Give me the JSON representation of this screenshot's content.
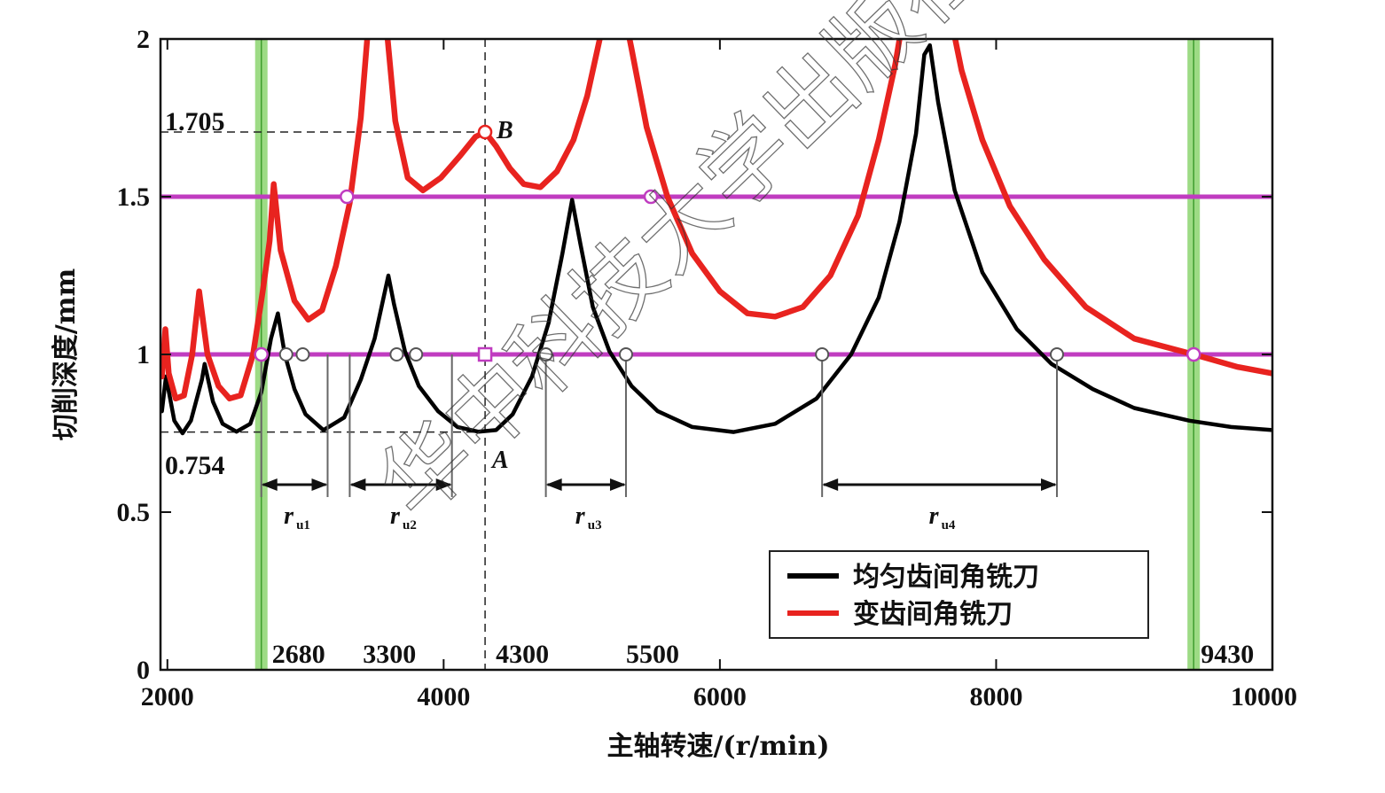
{
  "chart_data": {
    "type": "line",
    "xlabel": "主轴转速/(r/min)",
    "ylabel": "切削深度/mm",
    "xlim": [
      1950,
      10000
    ],
    "ylim": [
      0,
      2
    ],
    "xticks": [
      2000,
      4000,
      6000,
      8000,
      10000
    ],
    "xtick_labels": [
      "2000",
      "4000",
      "6000",
      "8000",
      "10000"
    ],
    "yticks": [
      0,
      0.5,
      1,
      1.5,
      2
    ],
    "ytick_labels": [
      "0",
      "0.5",
      "1",
      "1.5",
      "2"
    ],
    "legend_position": "bottom-right",
    "colors": {
      "uniform": "#000000",
      "variable": "#e8231f",
      "threshold": "#c03cc0",
      "bounds": "#7ccf5c"
    },
    "series": [
      {
        "name": "均匀齿间角铣刀",
        "color": "#000000",
        "points": [
          [
            1960,
            0.82
          ],
          [
            1990,
            0.93
          ],
          [
            2050,
            0.79
          ],
          [
            2110,
            0.75
          ],
          [
            2170,
            0.79
          ],
          [
            2250,
            0.92
          ],
          [
            2270,
            0.97
          ],
          [
            2330,
            0.85
          ],
          [
            2400,
            0.78
          ],
          [
            2500,
            0.755
          ],
          [
            2600,
            0.78
          ],
          [
            2680,
            0.88
          ],
          [
            2750,
            1.05
          ],
          [
            2800,
            1.13
          ],
          [
            2850,
            1.0
          ],
          [
            2920,
            0.89
          ],
          [
            3000,
            0.81
          ],
          [
            3130,
            0.76
          ],
          [
            3280,
            0.8
          ],
          [
            3400,
            0.92
          ],
          [
            3500,
            1.05
          ],
          [
            3560,
            1.17
          ],
          [
            3600,
            1.25
          ],
          [
            3640,
            1.16
          ],
          [
            3720,
            1.01
          ],
          [
            3820,
            0.9
          ],
          [
            3960,
            0.82
          ],
          [
            4100,
            0.77
          ],
          [
            4250,
            0.755
          ],
          [
            4380,
            0.76
          ],
          [
            4500,
            0.81
          ],
          [
            4640,
            0.93
          ],
          [
            4760,
            1.1
          ],
          [
            4860,
            1.32
          ],
          [
            4930,
            1.49
          ],
          [
            4990,
            1.35
          ],
          [
            5080,
            1.15
          ],
          [
            5200,
            1.01
          ],
          [
            5360,
            0.9
          ],
          [
            5550,
            0.82
          ],
          [
            5800,
            0.77
          ],
          [
            6100,
            0.754
          ],
          [
            6400,
            0.78
          ],
          [
            6700,
            0.86
          ],
          [
            6950,
            1.0
          ],
          [
            7150,
            1.18
          ],
          [
            7300,
            1.42
          ],
          [
            7420,
            1.7
          ],
          [
            7480,
            1.95
          ],
          [
            7520,
            1.98
          ],
          [
            7580,
            1.8
          ],
          [
            7700,
            1.52
          ],
          [
            7900,
            1.26
          ],
          [
            8150,
            1.08
          ],
          [
            8400,
            0.97
          ],
          [
            8700,
            0.89
          ],
          [
            9000,
            0.83
          ],
          [
            9400,
            0.79
          ],
          [
            9700,
            0.77
          ],
          [
            10000,
            0.76
          ]
        ]
      },
      {
        "name": "变齿间角铣刀",
        "color": "#e8231f",
        "points": [
          [
            1960,
            0.93
          ],
          [
            1985,
            1.08
          ],
          [
            2010,
            0.94
          ],
          [
            2060,
            0.86
          ],
          [
            2120,
            0.87
          ],
          [
            2180,
            1.0
          ],
          [
            2230,
            1.2
          ],
          [
            2290,
            1.0
          ],
          [
            2370,
            0.9
          ],
          [
            2450,
            0.86
          ],
          [
            2530,
            0.87
          ],
          [
            2620,
            1.0
          ],
          [
            2690,
            1.2
          ],
          [
            2740,
            1.36
          ],
          [
            2770,
            1.54
          ],
          [
            2820,
            1.33
          ],
          [
            2920,
            1.17
          ],
          [
            3020,
            1.11
          ],
          [
            3120,
            1.14
          ],
          [
            3220,
            1.28
          ],
          [
            3320,
            1.48
          ],
          [
            3400,
            1.75
          ],
          [
            3450,
            2.02
          ],
          [
            3490,
            2.3
          ],
          [
            3550,
            2.3
          ],
          [
            3590,
            2.02
          ],
          [
            3650,
            1.74
          ],
          [
            3740,
            1.56
          ],
          [
            3850,
            1.52
          ],
          [
            3980,
            1.56
          ],
          [
            4120,
            1.63
          ],
          [
            4230,
            1.69
          ],
          [
            4300,
            1.705
          ],
          [
            4380,
            1.66
          ],
          [
            4480,
            1.59
          ],
          [
            4580,
            1.54
          ],
          [
            4700,
            1.53
          ],
          [
            4820,
            1.58
          ],
          [
            4940,
            1.68
          ],
          [
            5040,
            1.82
          ],
          [
            5130,
            2.0
          ],
          [
            5170,
            2.1
          ],
          [
            5300,
            2.1
          ],
          [
            5360,
            1.97
          ],
          [
            5470,
            1.72
          ],
          [
            5620,
            1.5
          ],
          [
            5800,
            1.32
          ],
          [
            6000,
            1.2
          ],
          [
            6200,
            1.13
          ],
          [
            6400,
            1.12
          ],
          [
            6600,
            1.15
          ],
          [
            6800,
            1.25
          ],
          [
            7000,
            1.44
          ],
          [
            7150,
            1.68
          ],
          [
            7270,
            1.92
          ],
          [
            7320,
            2.05
          ],
          [
            7680,
            2.05
          ],
          [
            7750,
            1.9
          ],
          [
            7900,
            1.68
          ],
          [
            8100,
            1.47
          ],
          [
            8350,
            1.3
          ],
          [
            8650,
            1.15
          ],
          [
            9000,
            1.05
          ],
          [
            9430,
            1.0
          ],
          [
            9750,
            0.96
          ],
          [
            10000,
            0.94
          ]
        ]
      }
    ],
    "threshold_lines": [
      1.0,
      1.5
    ],
    "stability_bounds": [
      2680,
      9430
    ],
    "dashed_reference": {
      "x": 4300,
      "y_low": 0.754,
      "y_high": 1.705
    },
    "markers": {
      "uniform_at_1": [
        2860,
        2980,
        3660,
        3800,
        4740,
        5320,
        6740,
        8440
      ],
      "variable_at_1": [
        2680,
        9430
      ],
      "variable_at_1_5": [
        3300,
        5500
      ],
      "center_square": [
        4300,
        1.0
      ],
      "point_A": [
        4300,
        0.754
      ],
      "point_B": [
        4300,
        1.705
      ]
    },
    "ranges": [
      {
        "label": "r",
        "sub": "u1",
        "from": 2680,
        "to": 3160
      },
      {
        "label": "r",
        "sub": "u2",
        "from": 3320,
        "to": 4060
      },
      {
        "label": "r",
        "sub": "u3",
        "from": 4740,
        "to": 5320
      },
      {
        "label": "r",
        "sub": "u4",
        "from": 6740,
        "to": 8440
      }
    ],
    "annotations": {
      "y_low": "0.754",
      "y_high": "1.705",
      "A": "A",
      "B": "B",
      "x_labels": [
        {
          "x": 2680,
          "text": "2680"
        },
        {
          "x": 3300,
          "text": "3300"
        },
        {
          "x": 4300,
          "text": "4300"
        },
        {
          "x": 5500,
          "text": "5500"
        },
        {
          "x": 9430,
          "text": "9430"
        }
      ]
    }
  },
  "watermark": "华中科技大学出版社"
}
